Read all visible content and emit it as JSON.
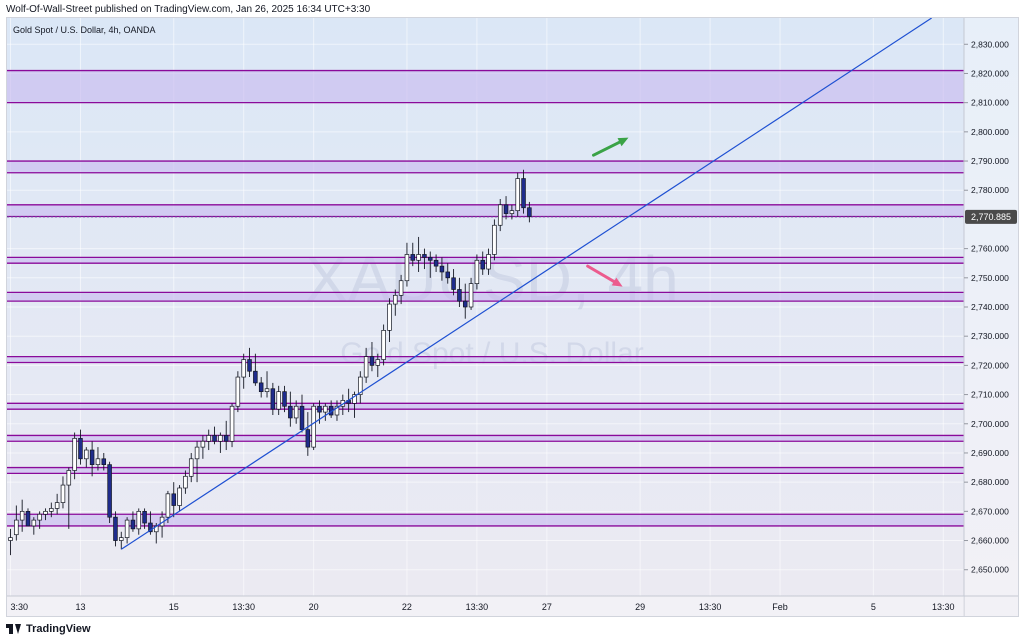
{
  "header": {
    "published_line": "Wolf-Of-Wall-Street published on TradingView.com, Jan 26, 2025 16:34 UTC+3:30"
  },
  "footer": {
    "brand": "TradingView"
  },
  "colors": {
    "background_top": "#dbe7f6",
    "background_bottom": "#eceaf2",
    "zone_fill": "#c9bcf0",
    "zone_border": "#8a0a9a",
    "trendline": "#1e50d2",
    "candle_up_fill": "#ffffff",
    "candle_down_fill": "#1f2c8c",
    "candle_outline": "#131722",
    "arrow_up": "#3aa346",
    "arrow_down": "#ec5b8e",
    "price_tag_bg": "#4a4a4a",
    "price_tag_text": "#ffffff"
  },
  "chart_data": {
    "type": "candlestick",
    "title": "Gold Spot / U.S. Dollar, 4h, OANDA",
    "watermark": {
      "symbol": "XAUUSD, 4h",
      "description": "Gold Spot / U.S. Dollar"
    },
    "ylim": [
      2641,
      2839
    ],
    "y_ticks": [
      "2,650.000",
      "2,660.000",
      "2,670.000",
      "2,680.000",
      "2,690.000",
      "2,700.000",
      "2,710.000",
      "2,720.000",
      "2,730.000",
      "2,740.000",
      "2,750.000",
      "2,760.000",
      "2,780.000",
      "2,790.000",
      "2,800.000",
      "2,810.000",
      "2,820.000",
      "2,830.000"
    ],
    "last_price": 2770.885,
    "last_price_label": "2,770.885",
    "x_ticks": [
      {
        "label": "3:30",
        "i": 0
      },
      {
        "label": "13",
        "i": 12
      },
      {
        "label": "15",
        "i": 28
      },
      {
        "label": "13:30",
        "i": 40
      },
      {
        "label": "20",
        "i": 52
      },
      {
        "label": "22",
        "i": 68
      },
      {
        "label": "13:30",
        "i": 80
      },
      {
        "label": "27",
        "i": 92
      },
      {
        "label": "29",
        "i": 108
      },
      {
        "label": "13:30",
        "i": 120
      },
      {
        "label": "Feb",
        "i": 132
      },
      {
        "label": "5",
        "i": 148
      },
      {
        "label": "13:30",
        "i": 160
      }
    ],
    "zones": [
      {
        "low": 2810,
        "high": 2821
      },
      {
        "low": 2786,
        "high": 2790
      },
      {
        "low": 2771,
        "high": 2775
      },
      {
        "low": 2755,
        "high": 2757
      },
      {
        "low": 2742,
        "high": 2745
      },
      {
        "low": 2721,
        "high": 2723
      },
      {
        "low": 2705,
        "high": 2707
      },
      {
        "low": 2694,
        "high": 2696
      },
      {
        "low": 2683,
        "high": 2685
      },
      {
        "low": 2665,
        "high": 2669
      }
    ],
    "trendline": {
      "start": {
        "i": 19,
        "price": 2657
      },
      "end": {
        "i": 158,
        "price": 2839
      }
    },
    "arrows": [
      {
        "direction": "up",
        "from": {
          "i": 100,
          "price": 2792
        },
        "to": {
          "i": 106,
          "price": 2798
        }
      },
      {
        "direction": "down",
        "from": {
          "i": 99,
          "price": 2754
        },
        "to": {
          "i": 105,
          "price": 2747
        }
      }
    ],
    "candles": [
      {
        "o": 2660,
        "h": 2664,
        "l": 2655,
        "c": 2661
      },
      {
        "o": 2662,
        "h": 2672,
        "l": 2660,
        "c": 2667
      },
      {
        "o": 2667,
        "h": 2674,
        "l": 2663,
        "c": 2670
      },
      {
        "o": 2670,
        "h": 2671,
        "l": 2665,
        "c": 2665
      },
      {
        "o": 2665,
        "h": 2668,
        "l": 2662,
        "c": 2667
      },
      {
        "o": 2667,
        "h": 2670,
        "l": 2664,
        "c": 2669
      },
      {
        "o": 2669,
        "h": 2671,
        "l": 2667,
        "c": 2670
      },
      {
        "o": 2670,
        "h": 2673,
        "l": 2668,
        "c": 2671
      },
      {
        "o": 2671,
        "h": 2676,
        "l": 2669,
        "c": 2673
      },
      {
        "o": 2673,
        "h": 2682,
        "l": 2671,
        "c": 2679
      },
      {
        "o": 2679,
        "h": 2685,
        "l": 2664,
        "c": 2684
      },
      {
        "o": 2684,
        "h": 2697,
        "l": 2681,
        "c": 2695
      },
      {
        "o": 2695,
        "h": 2698,
        "l": 2686,
        "c": 2688
      },
      {
        "o": 2688,
        "h": 2692,
        "l": 2685,
        "c": 2691
      },
      {
        "o": 2691,
        "h": 2694,
        "l": 2682,
        "c": 2686
      },
      {
        "o": 2686,
        "h": 2692,
        "l": 2684,
        "c": 2688
      },
      {
        "o": 2688,
        "h": 2690,
        "l": 2684,
        "c": 2686
      },
      {
        "o": 2686,
        "h": 2687,
        "l": 2666,
        "c": 2668
      },
      {
        "o": 2668,
        "h": 2670,
        "l": 2658,
        "c": 2660
      },
      {
        "o": 2660,
        "h": 2663,
        "l": 2657,
        "c": 2661
      },
      {
        "o": 2661,
        "h": 2668,
        "l": 2659,
        "c": 2667
      },
      {
        "o": 2667,
        "h": 2670,
        "l": 2663,
        "c": 2664
      },
      {
        "o": 2664,
        "h": 2671,
        "l": 2662,
        "c": 2670
      },
      {
        "o": 2670,
        "h": 2671,
        "l": 2664,
        "c": 2666
      },
      {
        "o": 2666,
        "h": 2670,
        "l": 2662,
        "c": 2663
      },
      {
        "o": 2663,
        "h": 2666,
        "l": 2659,
        "c": 2665
      },
      {
        "o": 2665,
        "h": 2670,
        "l": 2661,
        "c": 2668
      },
      {
        "o": 2668,
        "h": 2677,
        "l": 2666,
        "c": 2676
      },
      {
        "o": 2676,
        "h": 2680,
        "l": 2668,
        "c": 2672
      },
      {
        "o": 2672,
        "h": 2679,
        "l": 2670,
        "c": 2678
      },
      {
        "o": 2678,
        "h": 2684,
        "l": 2676,
        "c": 2682
      },
      {
        "o": 2682,
        "h": 2690,
        "l": 2680,
        "c": 2688
      },
      {
        "o": 2688,
        "h": 2694,
        "l": 2680,
        "c": 2692
      },
      {
        "o": 2692,
        "h": 2696,
        "l": 2688,
        "c": 2694
      },
      {
        "o": 2694,
        "h": 2698,
        "l": 2691,
        "c": 2696
      },
      {
        "o": 2696,
        "h": 2699,
        "l": 2693,
        "c": 2694
      },
      {
        "o": 2694,
        "h": 2697,
        "l": 2690,
        "c": 2696
      },
      {
        "o": 2696,
        "h": 2701,
        "l": 2691,
        "c": 2694
      },
      {
        "o": 2694,
        "h": 2707,
        "l": 2692,
        "c": 2706
      },
      {
        "o": 2706,
        "h": 2718,
        "l": 2704,
        "c": 2716
      },
      {
        "o": 2716,
        "h": 2724,
        "l": 2712,
        "c": 2722
      },
      {
        "o": 2722,
        "h": 2726,
        "l": 2716,
        "c": 2718
      },
      {
        "o": 2718,
        "h": 2724,
        "l": 2713,
        "c": 2714
      },
      {
        "o": 2714,
        "h": 2716,
        "l": 2709,
        "c": 2711
      },
      {
        "o": 2711,
        "h": 2718,
        "l": 2709,
        "c": 2712
      },
      {
        "o": 2712,
        "h": 2714,
        "l": 2703,
        "c": 2705
      },
      {
        "o": 2705,
        "h": 2713,
        "l": 2703,
        "c": 2711
      },
      {
        "o": 2711,
        "h": 2713,
        "l": 2704,
        "c": 2706
      },
      {
        "o": 2706,
        "h": 2711,
        "l": 2699,
        "c": 2702
      },
      {
        "o": 2702,
        "h": 2708,
        "l": 2700,
        "c": 2706
      },
      {
        "o": 2706,
        "h": 2710,
        "l": 2697,
        "c": 2698
      },
      {
        "o": 2698,
        "h": 2704,
        "l": 2689,
        "c": 2692
      },
      {
        "o": 2692,
        "h": 2707,
        "l": 2691,
        "c": 2706
      },
      {
        "o": 2706,
        "h": 2708,
        "l": 2700,
        "c": 2704
      },
      {
        "o": 2704,
        "h": 2707,
        "l": 2701,
        "c": 2706
      },
      {
        "o": 2706,
        "h": 2708,
        "l": 2702,
        "c": 2703
      },
      {
        "o": 2703,
        "h": 2708,
        "l": 2701,
        "c": 2706
      },
      {
        "o": 2706,
        "h": 2710,
        "l": 2703,
        "c": 2708
      },
      {
        "o": 2708,
        "h": 2712,
        "l": 2704,
        "c": 2707
      },
      {
        "o": 2707,
        "h": 2711,
        "l": 2702,
        "c": 2710
      },
      {
        "o": 2710,
        "h": 2718,
        "l": 2707,
        "c": 2716
      },
      {
        "o": 2716,
        "h": 2726,
        "l": 2714,
        "c": 2723
      },
      {
        "o": 2723,
        "h": 2728,
        "l": 2718,
        "c": 2720
      },
      {
        "o": 2720,
        "h": 2724,
        "l": 2716,
        "c": 2722
      },
      {
        "o": 2722,
        "h": 2734,
        "l": 2720,
        "c": 2732
      },
      {
        "o": 2732,
        "h": 2743,
        "l": 2728,
        "c": 2741
      },
      {
        "o": 2741,
        "h": 2746,
        "l": 2737,
        "c": 2744
      },
      {
        "o": 2744,
        "h": 2751,
        "l": 2741,
        "c": 2749
      },
      {
        "o": 2749,
        "h": 2762,
        "l": 2747,
        "c": 2758
      },
      {
        "o": 2758,
        "h": 2762,
        "l": 2754,
        "c": 2756
      },
      {
        "o": 2756,
        "h": 2764,
        "l": 2752,
        "c": 2758
      },
      {
        "o": 2758,
        "h": 2760,
        "l": 2753,
        "c": 2757
      },
      {
        "o": 2757,
        "h": 2759,
        "l": 2750,
        "c": 2756
      },
      {
        "o": 2756,
        "h": 2758,
        "l": 2752,
        "c": 2754
      },
      {
        "o": 2754,
        "h": 2757,
        "l": 2749,
        "c": 2752
      },
      {
        "o": 2752,
        "h": 2755,
        "l": 2748,
        "c": 2750
      },
      {
        "o": 2750,
        "h": 2753,
        "l": 2744,
        "c": 2746
      },
      {
        "o": 2746,
        "h": 2750,
        "l": 2740,
        "c": 2742
      },
      {
        "o": 2742,
        "h": 2748,
        "l": 2736,
        "c": 2740
      },
      {
        "o": 2740,
        "h": 2750,
        "l": 2739,
        "c": 2748
      },
      {
        "o": 2748,
        "h": 2758,
        "l": 2746,
        "c": 2756
      },
      {
        "o": 2756,
        "h": 2759,
        "l": 2751,
        "c": 2753
      },
      {
        "o": 2753,
        "h": 2760,
        "l": 2751,
        "c": 2758
      },
      {
        "o": 2758,
        "h": 2770,
        "l": 2756,
        "c": 2768
      },
      {
        "o": 2768,
        "h": 2777,
        "l": 2766,
        "c": 2775
      },
      {
        "o": 2775,
        "h": 2778,
        "l": 2770,
        "c": 2772
      },
      {
        "o": 2772,
        "h": 2775,
        "l": 2770,
        "c": 2773
      },
      {
        "o": 2773,
        "h": 2786,
        "l": 2771,
        "c": 2784
      },
      {
        "o": 2784,
        "h": 2787,
        "l": 2772,
        "c": 2774
      },
      {
        "o": 2774,
        "h": 2776,
        "l": 2769,
        "c": 2771
      }
    ]
  }
}
